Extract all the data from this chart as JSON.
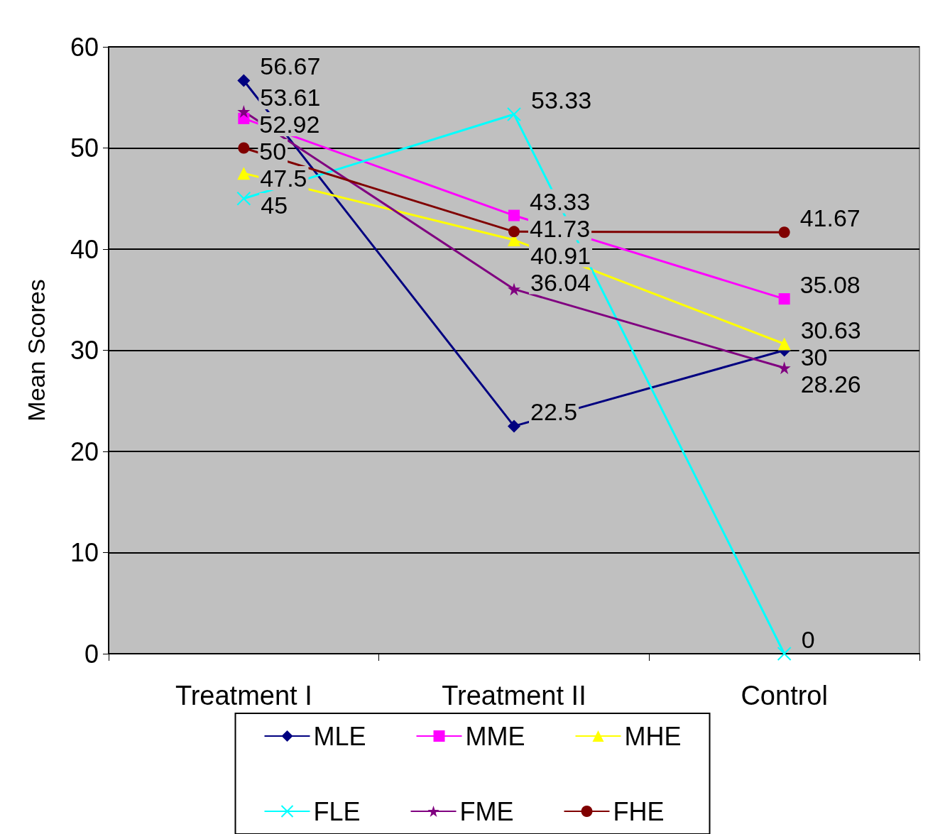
{
  "chart_data": {
    "type": "line",
    "ylabel": "Mean Scores",
    "categories": [
      "Treatment I",
      "Treatment II",
      "Control"
    ],
    "ylim": [
      0,
      60
    ],
    "yticks": [
      0,
      10,
      20,
      30,
      40,
      50,
      60
    ],
    "grid": "y",
    "legend": "bottom",
    "data_labels": true,
    "series": [
      {
        "name": "MLE",
        "color": "#000080",
        "marker": "diamond",
        "values": [
          56.67,
          22.5,
          30
        ]
      },
      {
        "name": "MME",
        "color": "#ff00ff",
        "marker": "square",
        "values": [
          52.92,
          43.33,
          35.08
        ]
      },
      {
        "name": "MHE",
        "color": "#ffff00",
        "marker": "triangle",
        "values": [
          47.5,
          40.91,
          30.63
        ]
      },
      {
        "name": "FLE",
        "color": "#00ffff",
        "marker": "cross",
        "values": [
          45,
          53.33,
          0
        ]
      },
      {
        "name": "FME",
        "color": "#800080",
        "marker": "star",
        "values": [
          53.61,
          36.04,
          28.26
        ]
      },
      {
        "name": "FHE",
        "color": "#800000",
        "marker": "circle",
        "values": [
          50,
          41.73,
          41.67
        ]
      }
    ]
  }
}
